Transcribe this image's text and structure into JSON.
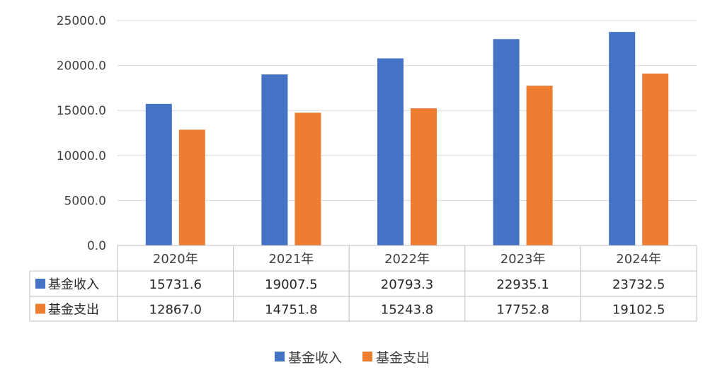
{
  "chart_data": {
    "type": "bar",
    "title": "",
    "xlabel": "",
    "ylabel": "",
    "ylim": [
      0,
      25000
    ],
    "yticks": [
      "0.0",
      "5000.0",
      "10000.0",
      "15000.0",
      "20000.0",
      "25000.0"
    ],
    "grid": true,
    "legend_position": "bottom",
    "data_table": true,
    "categories": [
      "2020年",
      "2021年",
      "2022年",
      "2023年",
      "2024年"
    ],
    "series": [
      {
        "name": "基金收入",
        "color": "#4472C4",
        "values": [
          15731.6,
          19007.5,
          20793.3,
          22935.1,
          23732.5
        ],
        "labels": [
          "15731.6",
          "19007.5",
          "20793.3",
          "22935.1",
          "23732.5"
        ]
      },
      {
        "name": "基金支出",
        "color": "#ED7D31",
        "values": [
          12867.0,
          14751.8,
          15243.8,
          17752.8,
          19102.5
        ],
        "labels": [
          "12867.0",
          "14751.8",
          "15243.8",
          "17752.8",
          "19102.5"
        ]
      }
    ]
  }
}
